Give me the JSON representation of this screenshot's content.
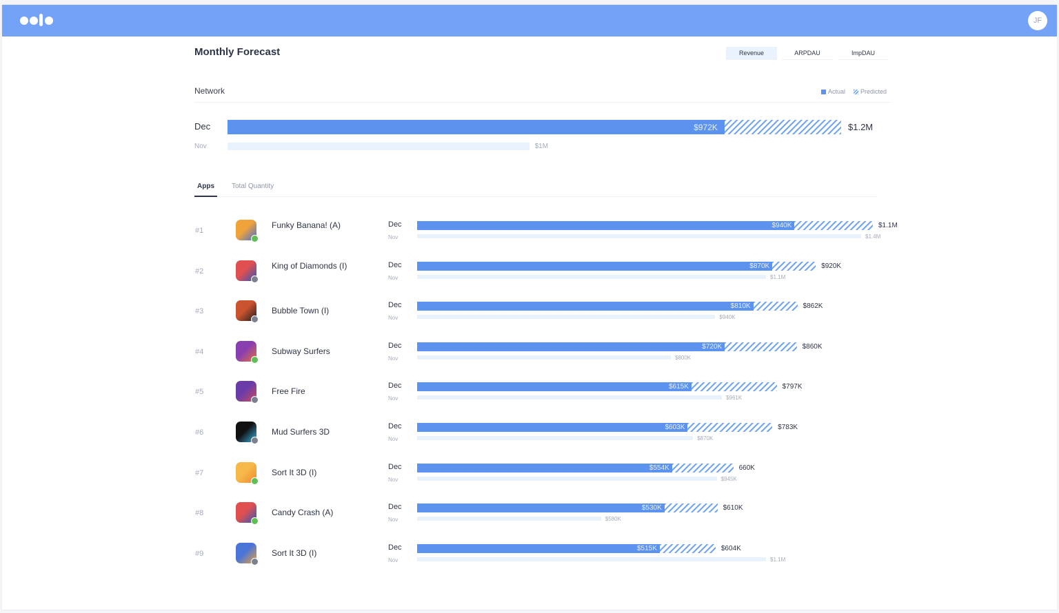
{
  "app": {
    "user_initials": "JF"
  },
  "page": {
    "title": "Monthly Forecast"
  },
  "metric_tabs": [
    {
      "label": "Revenue",
      "active": true
    },
    {
      "label": "ARPDAU",
      "active": false
    },
    {
      "label": "ImpDAU",
      "active": false
    }
  ],
  "network": {
    "label": "Network",
    "dec_label": "Dec",
    "nov_label": "Nov",
    "dec_actual": "$972K",
    "dec_total": "$1.2M",
    "nov_total": "$1M",
    "dec_actual_value": 972,
    "dec_total_value": 1200,
    "nov_value": 1000
  },
  "legend": {
    "actual": "Actual",
    "predicted": "Predicted",
    "actual_color": "#5b93ef",
    "predicted_color": "#72a6f3"
  },
  "list_tabs": [
    {
      "label": "Apps",
      "active": true
    },
    {
      "label": "Total Quantity",
      "active": false
    }
  ],
  "month_labels": {
    "dec": "Dec",
    "nov": "Nov"
  },
  "apps": [
    {
      "rank": "#1",
      "name": "Funky Banana!  (A)",
      "dec_actual": "$940K",
      "dec_total": "$1.1M",
      "nov_total": "$1.4M",
      "actual_value": 940,
      "total_value": 1100,
      "nov_value": 1400,
      "icon": "funky-banana-icon",
      "platform": "android",
      "colors": [
        "#f1a33b",
        "#3f6fd6"
      ]
    },
    {
      "rank": "#2",
      "name": "King of Diamonds (I)",
      "dec_actual": "$870K",
      "dec_total": "$920K",
      "nov_total": "$1.1M",
      "actual_value": 870,
      "total_value": 920,
      "nov_value": 1100,
      "icon": "king-of-diamonds-icon",
      "platform": "ios",
      "colors": [
        "#e05050",
        "#2f56b8"
      ]
    },
    {
      "rank": "#3",
      "name": "Bubble Town (I)",
      "dec_actual": "$810K",
      "dec_total": "$862K",
      "nov_total": "$940K",
      "actual_value": 810,
      "total_value": 862,
      "nov_value": 940,
      "icon": "bubble-town-icon",
      "platform": "ios",
      "colors": [
        "#c9542f",
        "#1c1c1c"
      ]
    },
    {
      "rank": "#4",
      "name": "Subway Surfers",
      "dec_actual": "$720K",
      "dec_total": "$860K",
      "nov_total": "$800K",
      "actual_value": 720,
      "total_value": 860,
      "nov_value": 800,
      "icon": "subway-surfers-icon",
      "platform": "android",
      "colors": [
        "#8a3fb0",
        "#e86f3a"
      ]
    },
    {
      "rank": "#5",
      "name": "Free Fire",
      "dec_actual": "$615K",
      "dec_total": "$797K",
      "nov_total": "$961K",
      "actual_value": 615,
      "total_value": 797,
      "nov_value": 961,
      "icon": "free-fire-icon",
      "platform": "ios",
      "colors": [
        "#6a3ca8",
        "#d04b5a"
      ]
    },
    {
      "rank": "#6",
      "name": "Mud Surfers 3D",
      "dec_actual": "$603K",
      "dec_total": "$783K",
      "nov_total": "$870K",
      "actual_value": 603,
      "total_value": 783,
      "nov_value": 870,
      "icon": "mud-surfers-icon",
      "platform": "ios",
      "colors": [
        "#111111",
        "#3bb4e8"
      ]
    },
    {
      "rank": "#7",
      "name": "Sort It 3D (I)",
      "dec_actual": "$554K",
      "dec_total": "660K",
      "nov_total": "$945K",
      "actual_value": 554,
      "total_value": 660,
      "nov_value": 945,
      "icon": "sort-it-emoji-icon",
      "platform": "android",
      "colors": [
        "#f6b84a",
        "#f08a2d"
      ]
    },
    {
      "rank": "#8",
      "name": "Candy Crash (A)",
      "dec_actual": "$530K",
      "dec_total": "$610K",
      "nov_total": "$580K",
      "actual_value": 530,
      "total_value": 610,
      "nov_value": 580,
      "icon": "candy-crash-icon",
      "platform": "android",
      "colors": [
        "#e05050",
        "#2f56b8"
      ]
    },
    {
      "rank": "#9",
      "name": "Sort It 3D (I)",
      "dec_actual": "$515K",
      "dec_total": "$604K",
      "nov_total": "$1.1M",
      "actual_value": 515,
      "total_value": 604,
      "nov_value": 1100,
      "icon": "sort-it-tubes-icon",
      "platform": "ios",
      "colors": [
        "#4a74d8",
        "#e8a23a"
      ]
    }
  ]
}
